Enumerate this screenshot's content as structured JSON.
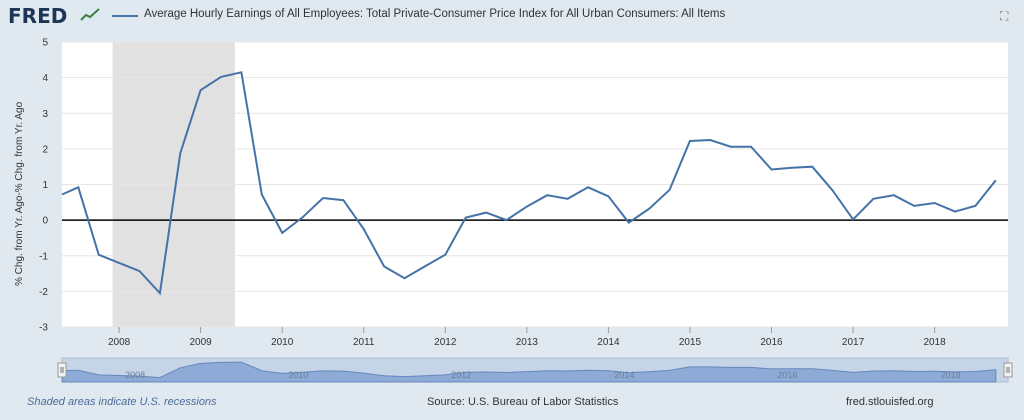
{
  "header": {
    "logo": "FRED",
    "legend_label": "Average Hourly Earnings of All Employees: Total Private-Consumer Price Index for All Urban Consumers: All Items"
  },
  "footer": {
    "recessions_note": "Shaded areas indicate U.S. recessions",
    "source": "Source: U.S. Bureau of Labor Statistics",
    "site": "fred.stlouisfed.org"
  },
  "colors": {
    "series": "#4572a7",
    "recession": "#e1e1e1",
    "navigator_fill": "#8eaad6"
  },
  "icons": {
    "expand": "fullscreen-icon",
    "logo_graph": "fred-graph-icon"
  },
  "navigator": {
    "labels": [
      "2008",
      "2010",
      "2012",
      "2014",
      "2016",
      "2018"
    ]
  },
  "chart_data": {
    "type": "line",
    "title": "",
    "xlabel": "",
    "ylabel": "% Chg. from Yr. Ago-% Chg. from Yr. Ago",
    "ylim": [
      -3,
      5
    ],
    "y_ticks": [
      -3,
      -2,
      -1,
      0,
      1,
      2,
      3,
      4,
      5
    ],
    "x_range": [
      2007.3,
      2018.9
    ],
    "x_ticks": [
      "2008",
      "2009",
      "2010",
      "2011",
      "2012",
      "2013",
      "2014",
      "2015",
      "2016",
      "2017",
      "2018"
    ],
    "recession": {
      "start": 2007.92,
      "end": 2009.42
    },
    "grid": true,
    "series": [
      {
        "values": [
          [
            2007.3,
            0.72
          ],
          [
            2007.5,
            0.92
          ],
          [
            2007.75,
            -0.97
          ],
          [
            2008.0,
            -1.2
          ],
          [
            2008.25,
            -1.43
          ],
          [
            2008.5,
            -2.05
          ],
          [
            2008.75,
            1.88
          ],
          [
            2009.0,
            3.65
          ],
          [
            2009.25,
            4.02
          ],
          [
            2009.5,
            4.15
          ],
          [
            2009.75,
            0.72
          ],
          [
            2010.0,
            -0.36
          ],
          [
            2010.25,
            0.08
          ],
          [
            2010.5,
            0.62
          ],
          [
            2010.75,
            0.56
          ],
          [
            2011.0,
            -0.25
          ],
          [
            2011.25,
            -1.3
          ],
          [
            2011.5,
            -1.63
          ],
          [
            2011.75,
            -1.3
          ],
          [
            2012.0,
            -0.97
          ],
          [
            2012.25,
            0.07
          ],
          [
            2012.5,
            0.21
          ],
          [
            2012.75,
            0.0
          ],
          [
            2013.0,
            0.38
          ],
          [
            2013.25,
            0.7
          ],
          [
            2013.5,
            0.6
          ],
          [
            2013.75,
            0.92
          ],
          [
            2014.0,
            0.67
          ],
          [
            2014.25,
            -0.07
          ],
          [
            2014.5,
            0.32
          ],
          [
            2014.75,
            0.85
          ],
          [
            2015.0,
            2.22
          ],
          [
            2015.25,
            2.25
          ],
          [
            2015.5,
            2.06
          ],
          [
            2015.75,
            2.06
          ],
          [
            2016.0,
            1.42
          ],
          [
            2016.25,
            1.47
          ],
          [
            2016.5,
            1.5
          ],
          [
            2016.75,
            0.83
          ],
          [
            2017.0,
            0.02
          ],
          [
            2017.25,
            0.6
          ],
          [
            2017.5,
            0.7
          ],
          [
            2017.75,
            0.4
          ],
          [
            2018.0,
            0.48
          ],
          [
            2018.25,
            0.24
          ],
          [
            2018.5,
            0.4
          ],
          [
            2018.75,
            1.12
          ]
        ]
      }
    ]
  }
}
